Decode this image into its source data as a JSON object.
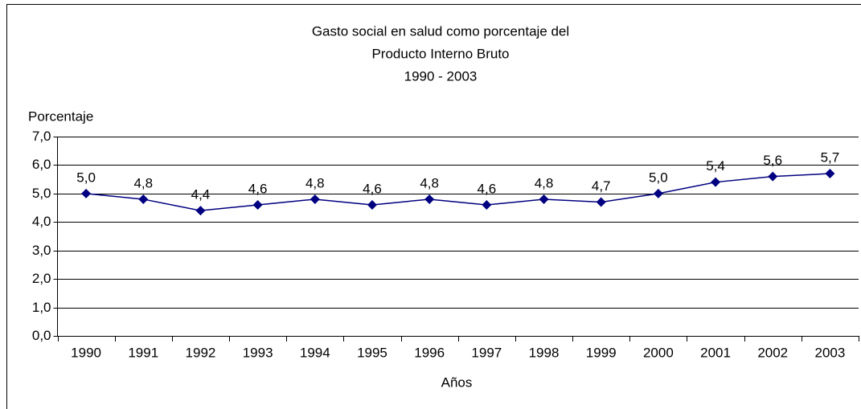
{
  "chart_data": {
    "type": "line",
    "title": [
      "Gasto social en salud como porcentaje del",
      "Producto Interno Bruto",
      "1990 - 2003"
    ],
    "y_label": "Porcentaje",
    "x_label": "Años",
    "categories": [
      "1990",
      "1991",
      "1992",
      "1993",
      "1994",
      "1995",
      "1996",
      "1997",
      "1998",
      "1999",
      "2000",
      "2001",
      "2002",
      "2003"
    ],
    "series": [
      {
        "name": null,
        "color": "#000080",
        "values": [
          5.0,
          4.8,
          4.4,
          4.6,
          4.8,
          4.6,
          4.8,
          4.6,
          4.8,
          4.7,
          5.0,
          5.4,
          5.6,
          5.7
        ],
        "value_labels": [
          "5,0",
          "4,8",
          "4,4",
          "4,6",
          "4,8",
          "4,6",
          "4,8",
          "4,6",
          "4,8",
          "4,7",
          "5,0",
          "5,4",
          "5,6",
          "5,7"
        ]
      }
    ],
    "ylim": [
      0,
      7
    ],
    "yticks": [
      {
        "value": 0,
        "label": "0,0"
      },
      {
        "value": 1,
        "label": "1,0"
      },
      {
        "value": 2,
        "label": "2,0"
      },
      {
        "value": 3,
        "label": "3,0"
      },
      {
        "value": 4,
        "label": "4,0"
      },
      {
        "value": 5,
        "label": "5,0"
      },
      {
        "value": 6,
        "label": "6,0"
      },
      {
        "value": 7,
        "label": "7,0"
      }
    ],
    "grid": true
  }
}
